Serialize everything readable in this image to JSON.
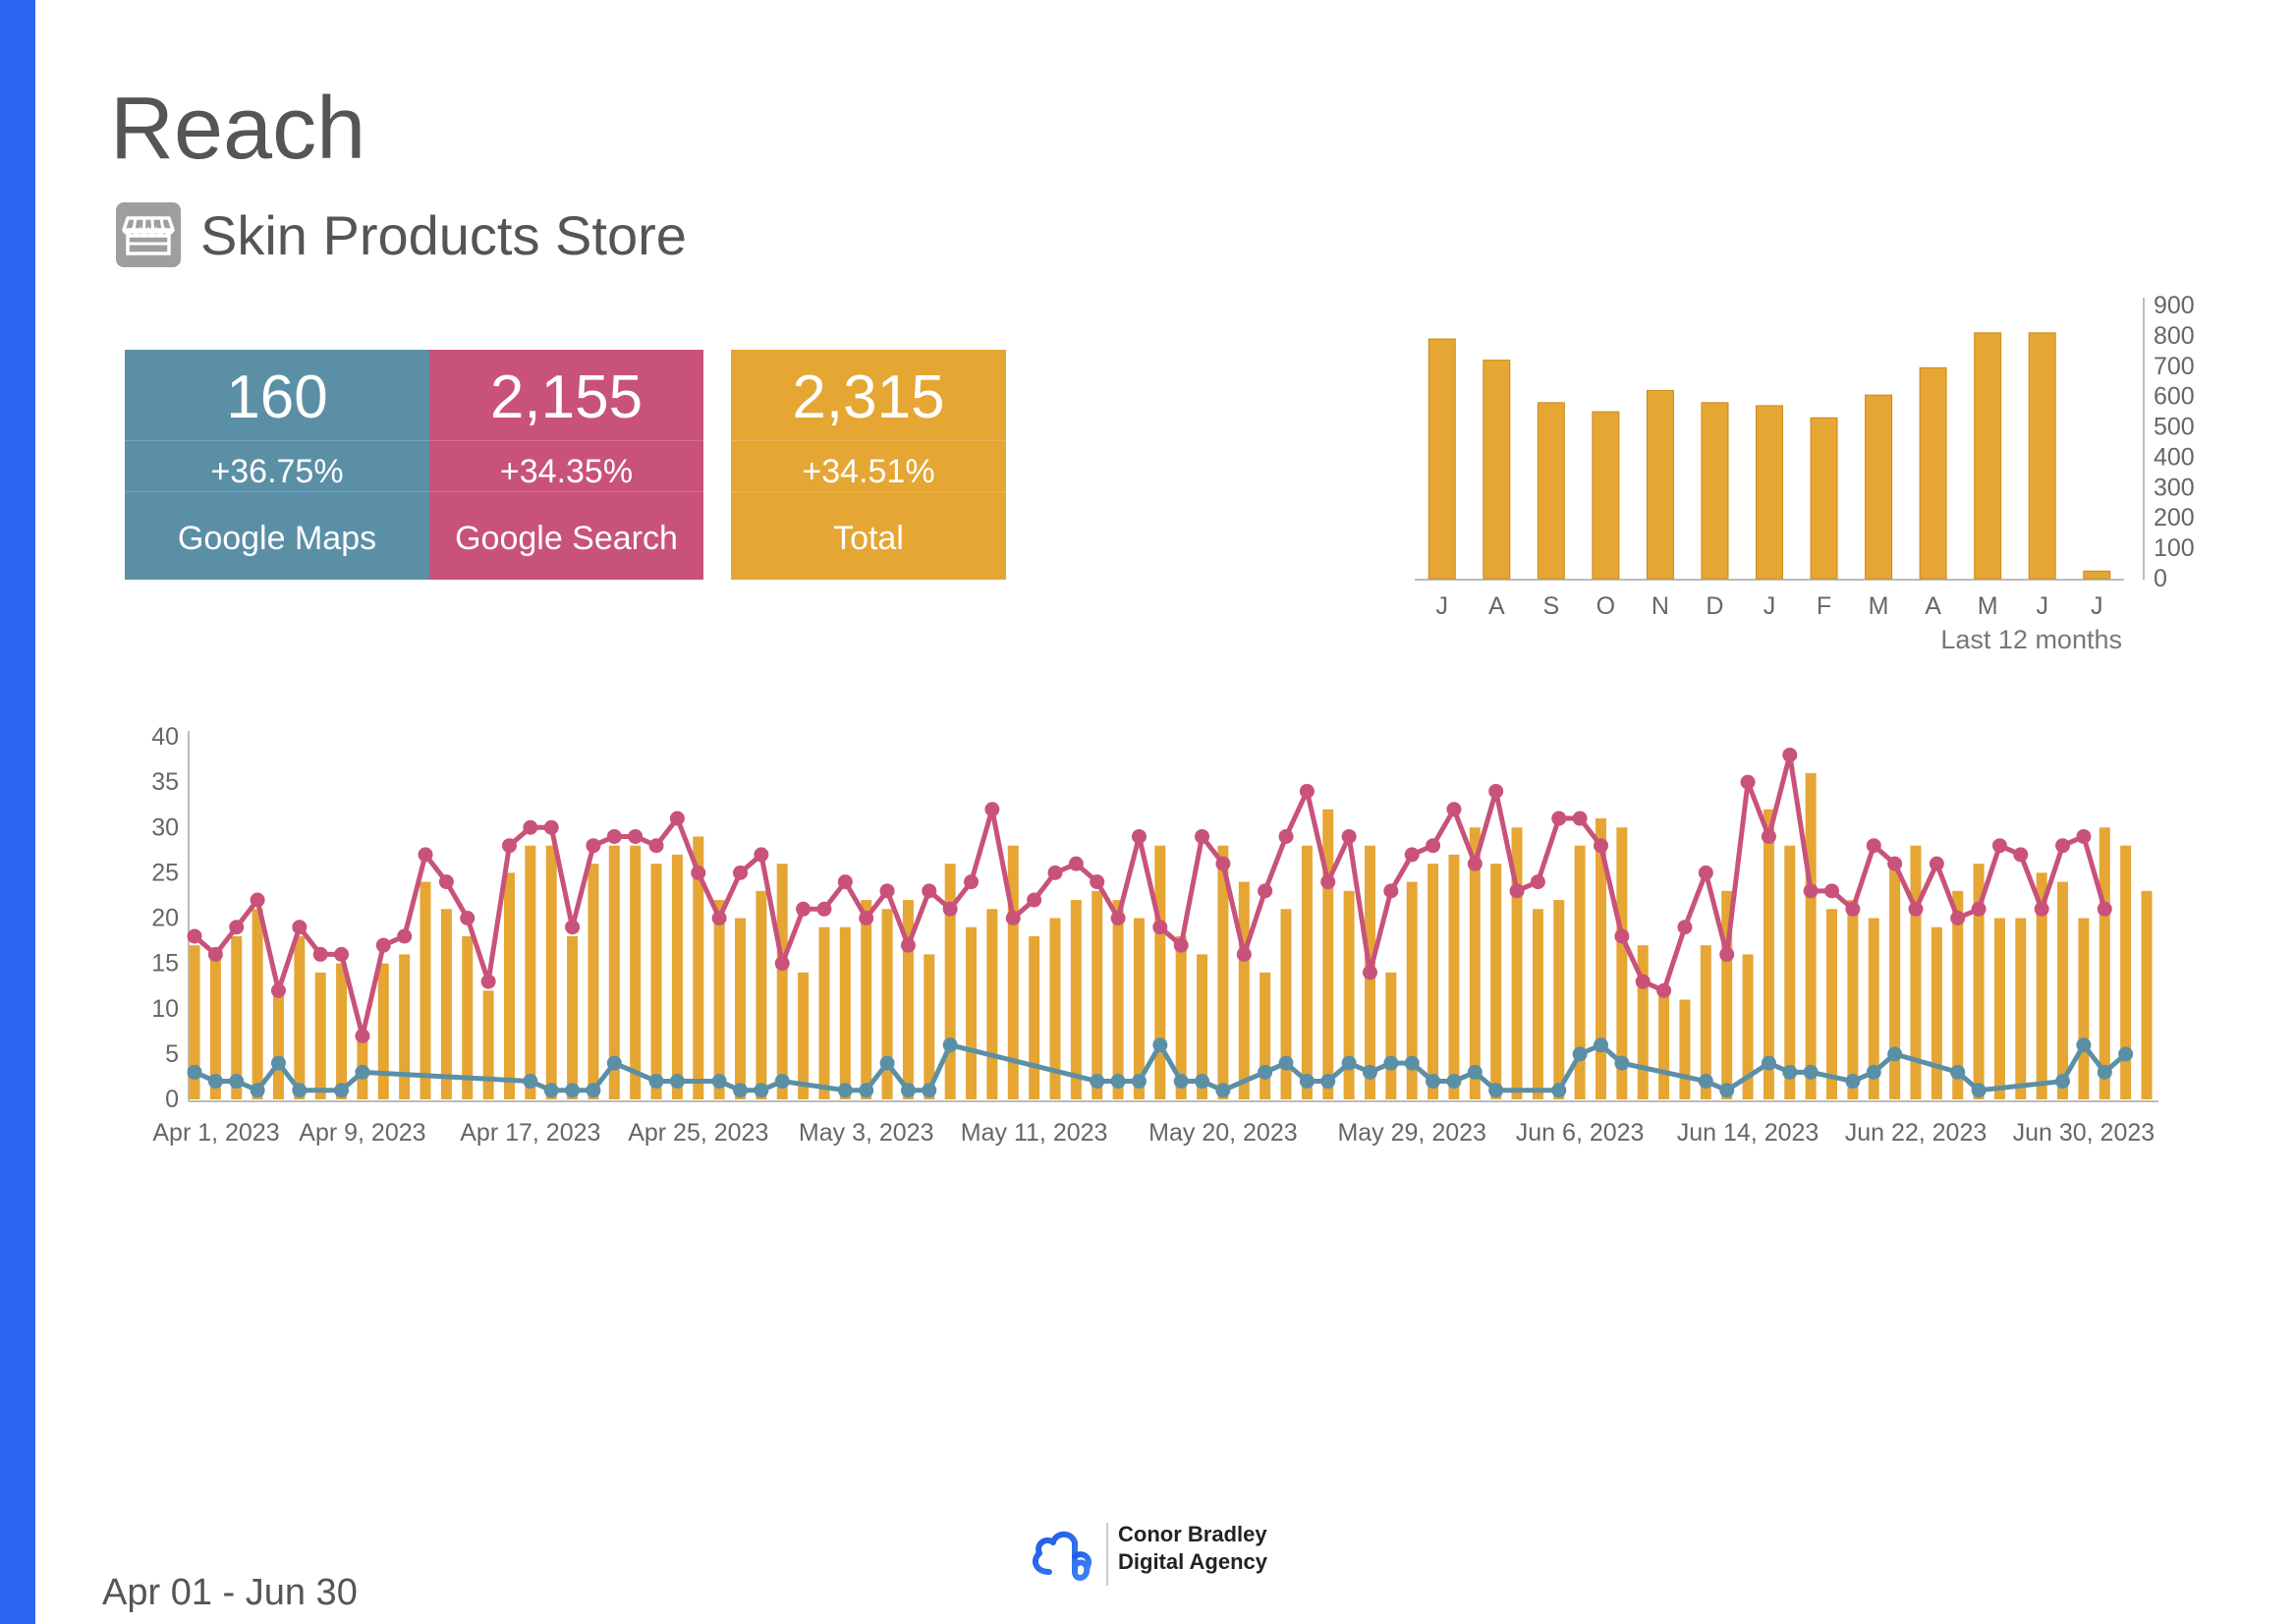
{
  "page": {
    "title": "Reach",
    "store_name": "Skin Products Store",
    "date_range": "Apr 01 - Jun 30"
  },
  "colors": {
    "accent": "#2a66f0",
    "maps": "#5b8fa6",
    "search": "#c9527a",
    "total": "#e5a634"
  },
  "icons": {
    "store": "store-icon",
    "logo": "agency-logo-icon"
  },
  "kpis": [
    {
      "value": "160",
      "change": "+36.75%",
      "label": "Google Maps"
    },
    {
      "value": "2,155",
      "change": "+34.35%",
      "label": "Google Search"
    },
    {
      "value": "2,315",
      "change": "+34.51%",
      "label": "Total"
    }
  ],
  "footer": {
    "logo_line1": "Conor Bradley",
    "logo_line2": "Digital Agency"
  },
  "chart_data": [
    {
      "type": "bar",
      "caption": "Last 12 months",
      "categories": [
        "J",
        "A",
        "S",
        "O",
        "N",
        "D",
        "J",
        "F",
        "M",
        "A",
        "M",
        "J",
        "J"
      ],
      "values": [
        790,
        720,
        580,
        550,
        620,
        580,
        570,
        530,
        605,
        695,
        810,
        810,
        25
      ],
      "ylim": [
        0,
        900
      ],
      "yticks": [
        0,
        100,
        200,
        300,
        400,
        500,
        600,
        700,
        800,
        900
      ],
      "axis_position": "right",
      "grid": false
    },
    {
      "type": "bar+line",
      "ylim": [
        0,
        40
      ],
      "yticks": [
        0,
        5,
        10,
        15,
        20,
        25,
        30,
        35,
        40
      ],
      "xticks": [
        {
          "index": 0,
          "label": "Apr 1, 2023"
        },
        {
          "index": 8,
          "label": "Apr 9, 2023"
        },
        {
          "index": 16,
          "label": "Apr 17, 2023"
        },
        {
          "index": 24,
          "label": "Apr 25, 2023"
        },
        {
          "index": 32,
          "label": "May 3, 2023"
        },
        {
          "index": 40,
          "label": "May 11, 2023"
        },
        {
          "index": 49,
          "label": "May 20, 2023"
        },
        {
          "index": 58,
          "label": "May 29, 2023"
        },
        {
          "index": 66,
          "label": "Jun 6, 2023"
        },
        {
          "index": 74,
          "label": "Jun 14, 2023"
        },
        {
          "index": 82,
          "label": "Jun 22, 2023"
        },
        {
          "index": 90,
          "label": "Jun 30, 2023"
        }
      ],
      "grid": false,
      "series": [
        {
          "kind": "bar",
          "color": "#e5a634",
          "values": [
            17,
            16,
            18,
            21,
            12,
            18,
            14,
            15,
            7,
            15,
            16,
            24,
            21,
            18,
            12,
            25,
            28,
            28,
            18,
            26,
            28,
            28,
            26,
            27,
            29,
            22,
            20,
            23,
            26,
            14,
            19,
            19,
            22,
            21,
            22,
            16,
            26,
            19,
            21,
            28,
            18,
            20,
            22,
            23,
            22,
            20,
            28,
            18,
            16,
            28,
            24,
            14,
            21,
            28,
            32,
            23,
            28,
            14,
            24,
            26,
            27,
            30,
            26,
            30,
            21,
            22,
            28,
            31,
            30,
            17,
            12,
            11,
            17,
            23,
            16,
            32,
            28,
            36,
            21,
            22,
            20,
            26,
            28,
            19,
            23,
            26,
            20,
            20,
            25,
            24,
            20,
            30,
            28,
            23
          ]
        },
        {
          "kind": "line",
          "color": "#c9527a",
          "values": [
            18,
            16,
            19,
            22,
            12,
            19,
            16,
            16,
            7,
            17,
            18,
            27,
            24,
            20,
            13,
            28,
            30,
            30,
            19,
            28,
            29,
            29,
            28,
            31,
            25,
            20,
            25,
            27,
            15,
            21,
            21,
            24,
            20,
            23,
            17,
            23,
            21,
            24,
            32,
            20,
            22,
            25,
            26,
            24,
            20,
            29,
            19,
            17,
            29,
            26,
            16,
            23,
            29,
            34,
            24,
            29,
            14,
            23,
            27,
            28,
            32,
            26,
            34,
            23,
            24,
            31,
            31,
            28,
            18,
            13,
            12,
            19,
            25,
            16,
            35,
            29,
            38,
            23,
            23,
            21,
            28,
            26,
            21,
            26,
            20,
            21,
            28,
            27,
            21,
            28,
            29,
            21
          ]
        },
        {
          "kind": "line",
          "color": "#5b8fa6",
          "points": [
            [
              0,
              3
            ],
            [
              1,
              2
            ],
            [
              2,
              2
            ],
            [
              3,
              1
            ],
            [
              4,
              4
            ],
            [
              5,
              1
            ],
            [
              7,
              1
            ],
            [
              8,
              3
            ],
            [
              16,
              2
            ],
            [
              17,
              1
            ],
            [
              18,
              1
            ],
            [
              19,
              1
            ],
            [
              20,
              4
            ],
            [
              22,
              2
            ],
            [
              23,
              2
            ],
            [
              25,
              2
            ],
            [
              26,
              1
            ],
            [
              27,
              1
            ],
            [
              28,
              2
            ],
            [
              31,
              1
            ],
            [
              32,
              1
            ],
            [
              33,
              4
            ],
            [
              34,
              1
            ],
            [
              35,
              1
            ],
            [
              36,
              6
            ],
            [
              43,
              2
            ],
            [
              44,
              2
            ],
            [
              45,
              2
            ],
            [
              46,
              6
            ],
            [
              47,
              2
            ],
            [
              48,
              2
            ],
            [
              49,
              1
            ],
            [
              51,
              3
            ],
            [
              52,
              4
            ],
            [
              53,
              2
            ],
            [
              54,
              2
            ],
            [
              55,
              4
            ],
            [
              56,
              3
            ],
            [
              57,
              4
            ],
            [
              58,
              4
            ],
            [
              59,
              2
            ],
            [
              60,
              2
            ],
            [
              61,
              3
            ],
            [
              62,
              1
            ],
            [
              65,
              1
            ],
            [
              66,
              5
            ],
            [
              67,
              6
            ],
            [
              68,
              4
            ],
            [
              72,
              2
            ],
            [
              73,
              1
            ],
            [
              75,
              4
            ],
            [
              76,
              3
            ],
            [
              77,
              3
            ],
            [
              79,
              2
            ],
            [
              80,
              3
            ],
            [
              81,
              5
            ],
            [
              84,
              3
            ],
            [
              85,
              1
            ],
            [
              89,
              2
            ],
            [
              90,
              6
            ],
            [
              91,
              3
            ],
            [
              92,
              5
            ]
          ]
        }
      ]
    }
  ]
}
